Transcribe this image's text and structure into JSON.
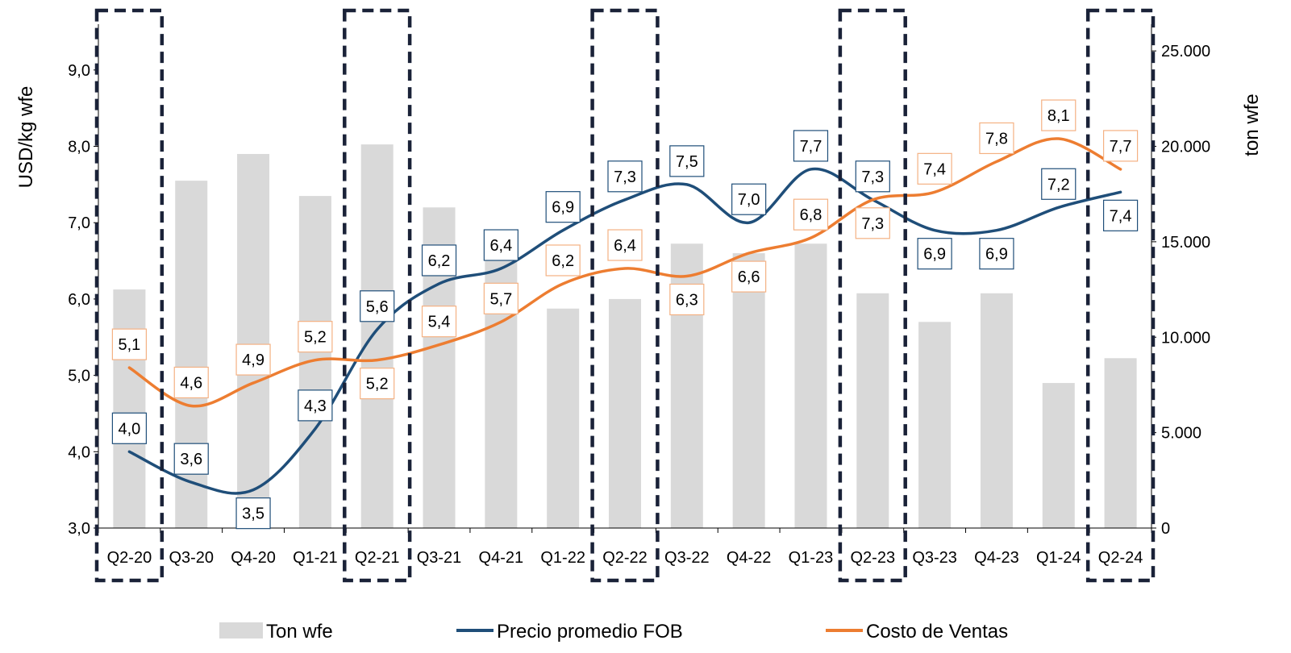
{
  "chart_data": {
    "type": "bar+line",
    "categories": [
      "Q2-20",
      "Q3-20",
      "Q4-20",
      "Q1-21",
      "Q2-21",
      "Q3-21",
      "Q4-21",
      "Q1-22",
      "Q2-22",
      "Q3-22",
      "Q4-22",
      "Q1-23",
      "Q2-23",
      "Q3-23",
      "Q4-23",
      "Q1-24",
      "Q2-24"
    ],
    "highlighted_categories": [
      "Q2-20",
      "Q2-21",
      "Q2-22",
      "Q2-23",
      "Q2-24"
    ],
    "ylabel": "USD/kg wfe",
    "y2label": "ton wfe",
    "ylim": [
      3,
      9.6
    ],
    "y2lim": [
      0,
      26400
    ],
    "yticks": [
      "3,0",
      "4,0",
      "5,0",
      "6,0",
      "7,0",
      "8,0",
      "9,0"
    ],
    "y2ticks": [
      "0",
      "5.000",
      "10.000",
      "15.000",
      "20.000",
      "25.000"
    ],
    "bars": {
      "name": "Ton wfe",
      "axis": "right",
      "color": "#d9d9d9",
      "values": [
        12500,
        18200,
        19600,
        17400,
        20100,
        16800,
        14100,
        11500,
        12000,
        14900,
        14400,
        14900,
        12300,
        10800,
        12300,
        7600,
        8900
      ]
    },
    "series": [
      {
        "name": "Precio promedio FOB",
        "axis": "left",
        "color": "#1f4e79",
        "values": [
          4.0,
          3.6,
          3.5,
          4.3,
          5.6,
          6.2,
          6.4,
          6.9,
          7.3,
          7.5,
          7.0,
          7.7,
          7.3,
          6.9,
          6.9,
          7.2,
          7.4
        ],
        "labels": [
          "4,0",
          "3,6",
          "3,5",
          "4,3",
          "5,6",
          "6,2",
          "6,4",
          "6,9",
          "7,3",
          "7,5",
          "7,0",
          "7,7",
          "7,3",
          "6,9",
          "6,9",
          "7,2",
          "7,4"
        ],
        "label_side": [
          "above",
          "above",
          "below",
          "above",
          "above",
          "above",
          "above",
          "above",
          "above",
          "above",
          "above",
          "above",
          "above",
          "below",
          "below",
          "above",
          "below"
        ]
      },
      {
        "name": "Costo de Ventas",
        "axis": "left",
        "color": "#ed7d31",
        "values": [
          5.1,
          4.6,
          4.9,
          5.2,
          5.2,
          5.4,
          5.7,
          6.2,
          6.4,
          6.3,
          6.6,
          6.8,
          7.3,
          7.4,
          7.8,
          8.1,
          7.7
        ],
        "labels": [
          "5,1",
          "4,6",
          "4,9",
          "5,2",
          "5,2",
          "5,4",
          "5,7",
          "6,2",
          "6,4",
          "6,3",
          "6,6",
          "6,8",
          "7,3",
          "7,4",
          "7,8",
          "8,1",
          "7,7"
        ],
        "label_side": [
          "above",
          "above",
          "above",
          "above",
          "below",
          "above",
          "above",
          "above",
          "above",
          "below",
          "below",
          "above",
          "below",
          "above",
          "above",
          "above",
          "above"
        ]
      }
    ],
    "legend": {
      "position": "bottom",
      "items": [
        {
          "label": "Ton wfe",
          "kind": "bar",
          "color": "#d9d9d9"
        },
        {
          "label": "Precio promedio FOB",
          "kind": "line",
          "color": "#1f4e79"
        },
        {
          "label": "Costo de Ventas",
          "kind": "line",
          "color": "#ed7d31"
        }
      ]
    },
    "grid": false
  }
}
